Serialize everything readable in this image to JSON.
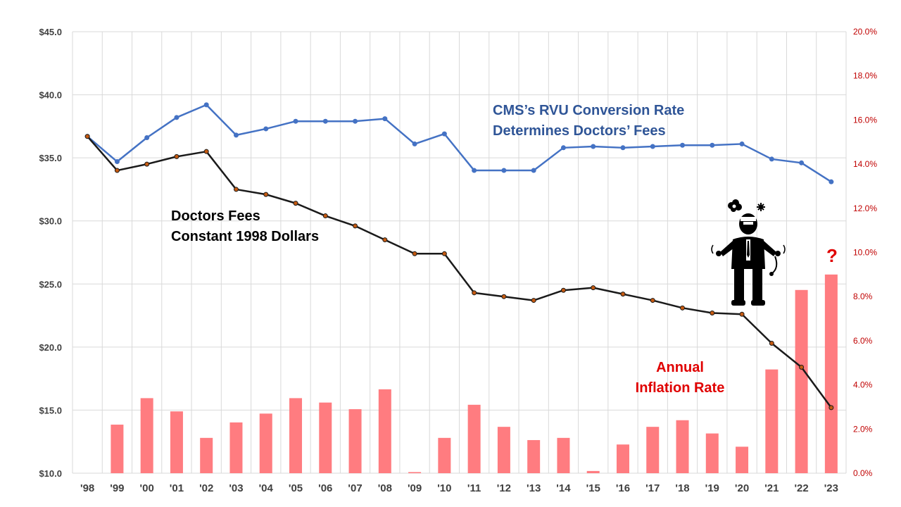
{
  "chart_data": {
    "type": "bar+line",
    "categories": [
      "'98",
      "'99",
      "'00",
      "'01",
      "'02",
      "'03",
      "'04",
      "'05",
      "'06",
      "'07",
      "'08",
      "'09",
      "'10",
      "'11",
      "'12",
      "'13",
      "'14",
      "'15",
      "'16",
      "'17",
      "'18",
      "'19",
      "'20",
      "'21",
      "'22",
      "'23"
    ],
    "series": [
      {
        "axis": "left",
        "kind": "line",
        "color": "#4472c4",
        "values": [
          36.7,
          34.7,
          36.6,
          38.2,
          39.2,
          36.8,
          37.3,
          37.9,
          37.9,
          37.9,
          38.1,
          36.1,
          36.9,
          34.0,
          34.0,
          34.0,
          35.8,
          35.9,
          35.8,
          35.9,
          36.0,
          36.0,
          36.1,
          34.9,
          34.6,
          33.1
        ]
      },
      {
        "axis": "left",
        "kind": "line",
        "color": "#1a1a1a",
        "marker_color": "#c55a11",
        "values": [
          36.7,
          34.0,
          34.5,
          35.1,
          35.5,
          32.5,
          32.1,
          31.4,
          30.4,
          29.6,
          28.5,
          27.4,
          27.4,
          24.3,
          24.0,
          23.7,
          24.5,
          24.7,
          24.2,
          23.7,
          23.1,
          22.7,
          22.6,
          20.3,
          18.4,
          15.2
        ]
      },
      {
        "axis": "right",
        "kind": "bar",
        "color": "#ff7c80",
        "values": [
          null,
          2.2,
          3.4,
          2.8,
          1.6,
          2.3,
          2.7,
          3.4,
          3.2,
          2.9,
          3.8,
          0.05,
          1.6,
          3.1,
          2.1,
          1.5,
          1.6,
          0.1,
          1.3,
          2.1,
          2.4,
          1.8,
          1.2,
          4.7,
          8.3,
          9.0
        ]
      }
    ],
    "y_left": {
      "range": [
        10,
        45
      ],
      "ticks": [
        10,
        15,
        20,
        25,
        30,
        35,
        40,
        45
      ],
      "tick_labels": [
        "$10.0",
        "$15.0",
        "$20.0",
        "$25.0",
        "$30.0",
        "$35.0",
        "$40.0",
        "$45.0"
      ]
    },
    "y_right": {
      "range": [
        0,
        20
      ],
      "ticks": [
        0,
        2,
        4,
        6,
        8,
        10,
        12,
        14,
        16,
        18,
        20
      ],
      "tick_labels": [
        "0.0%",
        "2.0%",
        "4.0%",
        "6.0%",
        "8.0%",
        "10.0%",
        "12.0%",
        "14.0%",
        "16.0%",
        "18.0%",
        "20.0%"
      ]
    },
    "grid": true,
    "annotations": {
      "rvu_line1": "CMS’s RVU Conversion Rate",
      "rvu_line2": "Determines Doctors’ Fees",
      "fees_line1": "Doctors Fees",
      "fees_line2": "Constant 1998 Dollars",
      "inflation_line1": "Annual",
      "inflation_line2": "Inflation Rate",
      "question_mark": "?"
    },
    "icons": [
      "angry-doctor-icon"
    ]
  }
}
